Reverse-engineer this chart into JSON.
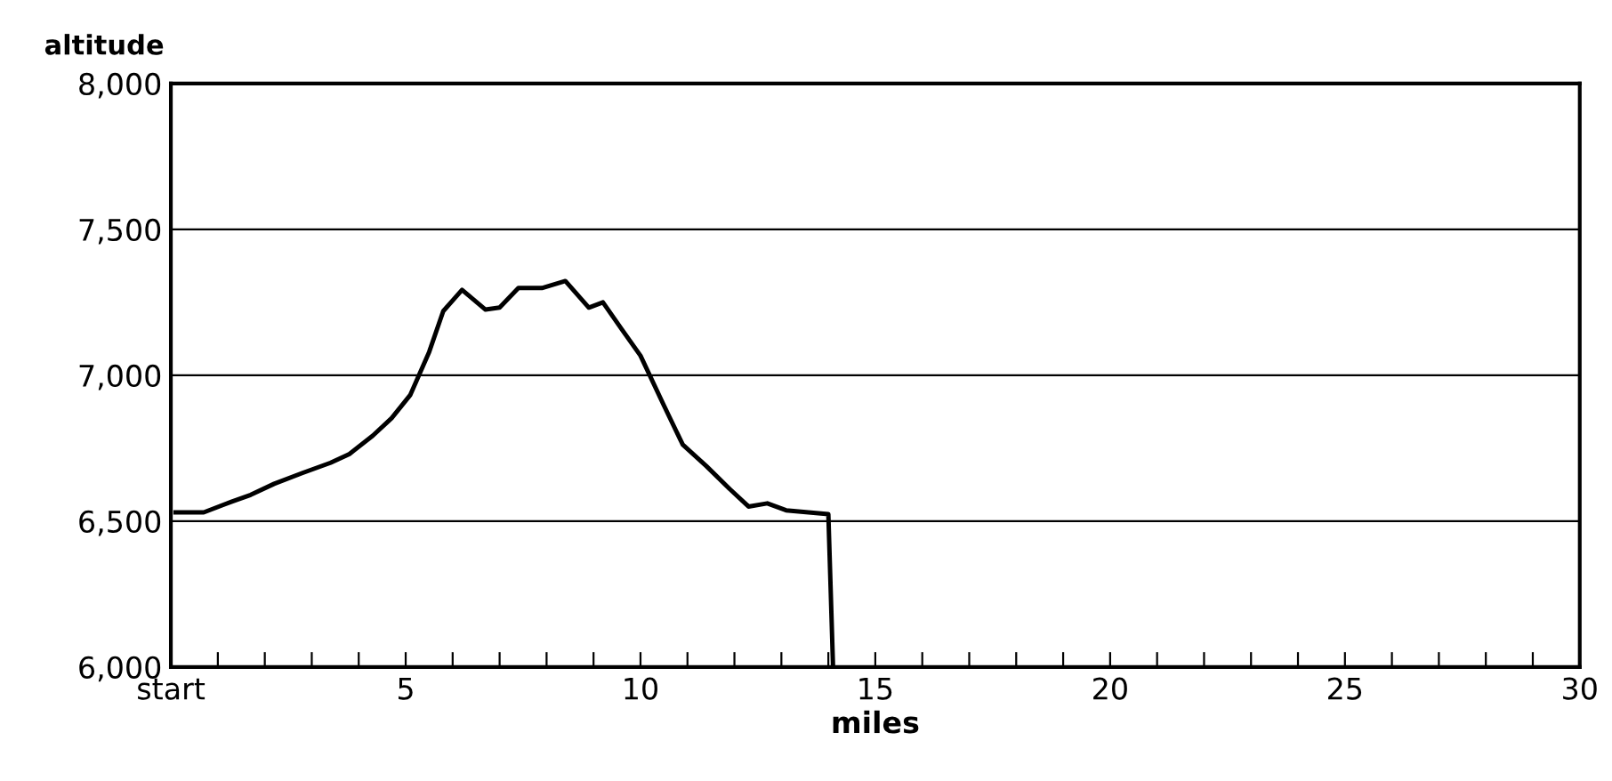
{
  "chart_data": {
    "type": "line",
    "ylabel": "altitude",
    "xlabel": "miles",
    "series": [
      {
        "color": "#000000",
        "x": [
          0.1,
          0.7,
          1.3,
          1.7,
          2.2,
          2.8,
          3.4,
          3.8,
          4.3,
          4.7,
          5.1,
          5.5,
          5.8,
          6.2,
          6.7,
          7.0,
          7.4,
          7.9,
          8.4,
          8.9,
          9.2,
          9.6,
          10.0,
          10.5,
          10.9,
          11.4,
          11.9,
          12.3,
          12.7,
          13.1,
          14.0,
          14.1
        ],
        "values": [
          6530,
          6530,
          6567,
          6590,
          6628,
          6665,
          6700,
          6730,
          6793,
          6853,
          6933,
          7080,
          7220,
          7293,
          7225,
          7232,
          7299,
          7299,
          7323,
          7232,
          7250,
          7158,
          7067,
          6896,
          6762,
          6689,
          6610,
          6550,
          6561,
          6537,
          6524,
          6000
        ]
      }
    ],
    "xlim": [
      0,
      30
    ],
    "ylim": [
      6000,
      8000
    ],
    "xticks": [
      {
        "value": 0,
        "label": "start"
      },
      {
        "value": 1,
        "label": null
      },
      {
        "value": 2,
        "label": null
      },
      {
        "value": 3,
        "label": null
      },
      {
        "value": 4,
        "label": null
      },
      5,
      {
        "value": 6,
        "label": null
      },
      {
        "value": 7,
        "label": null
      },
      {
        "value": 8,
        "label": null
      },
      {
        "value": 9,
        "label": null
      },
      10,
      {
        "value": 11,
        "label": null
      },
      {
        "value": 12,
        "label": null
      },
      {
        "value": 13,
        "label": null
      },
      {
        "value": 14,
        "label": null
      },
      15,
      {
        "value": 16,
        "label": null
      },
      {
        "value": 17,
        "label": null
      },
      {
        "value": 18,
        "label": null
      },
      {
        "value": 19,
        "label": null
      },
      20,
      {
        "value": 21,
        "label": null
      },
      {
        "value": 22,
        "label": null
      },
      {
        "value": 23,
        "label": null
      },
      {
        "value": 24,
        "label": null
      },
      25,
      {
        "value": 26,
        "label": null
      },
      {
        "value": 27,
        "label": null
      },
      {
        "value": 28,
        "label": null
      },
      {
        "value": 29,
        "label": null
      },
      30
    ],
    "yticks": [
      {
        "value": 6000,
        "label": "6,000"
      },
      {
        "value": 6500,
        "label": "6,500"
      },
      {
        "value": 7000,
        "label": "7,000"
      },
      {
        "value": 7500,
        "label": "7,500"
      },
      {
        "value": 8000,
        "label": "8,000"
      }
    ],
    "grid": "y",
    "line_style": "solid",
    "marker": "none"
  }
}
